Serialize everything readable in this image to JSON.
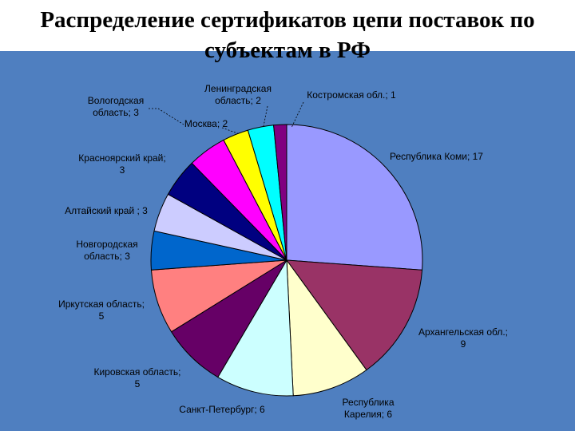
{
  "slide": {
    "title": "Распределение сертификатов цепи поставок по субъектам в РФ"
  },
  "chart_data": {
    "type": "pie",
    "title": "Распределение сертификатов цепи поставок по субъектам в РФ",
    "start": "12 o'clock",
    "direction": "clockwise",
    "slices": [
      {
        "name": "Республика Коми",
        "value": 17,
        "label_lines": [
          "Республика Коми; 17"
        ],
        "color": "#9999ff"
      },
      {
        "name": "Архангельская обл.",
        "value": 9,
        "label_lines": [
          "Архангельская обл.;",
          "9"
        ],
        "color": "#993366"
      },
      {
        "name": "Республика Карелия",
        "value": 6,
        "label_lines": [
          "Республика",
          "Карелия; 6"
        ],
        "color": "#ffffcc"
      },
      {
        "name": "Санкт-Петербург",
        "value": 6,
        "label_lines": [
          "Санкт-Петербург; 6"
        ],
        "color": "#ccffff"
      },
      {
        "name": "Кировская область",
        "value": 5,
        "label_lines": [
          "Кировская область;",
          "5"
        ],
        "color": "#660066"
      },
      {
        "name": "Иркутская область",
        "value": 5,
        "label_lines": [
          "Иркутская область;",
          "5"
        ],
        "color": "#ff8080"
      },
      {
        "name": "Новгородская область",
        "value": 3,
        "label_lines": [
          "Новгородская",
          "область; 3"
        ],
        "color": "#0066cc"
      },
      {
        "name": "Алтайский край",
        "value": 3,
        "label_lines": [
          "Алтайский край ; 3"
        ],
        "color": "#ccccff"
      },
      {
        "name": "Красноярский край",
        "value": 3,
        "label_lines": [
          "Красноярский край;",
          "3"
        ],
        "color": "#000080"
      },
      {
        "name": "Вологодская область",
        "value": 3,
        "label_lines": [
          "Вологодская",
          "область; 3"
        ],
        "color": "#ff00ff"
      },
      {
        "name": "Москва",
        "value": 2,
        "label_lines": [
          "Москва; 2"
        ],
        "color": "#ffff00"
      },
      {
        "name": "Ленинградская область",
        "value": 2,
        "label_lines": [
          "Ленинградская",
          "область; 2"
        ],
        "color": "#00ffff"
      },
      {
        "name": "Костромская обл.",
        "value": 1,
        "label_lines": [
          "Костромская обл.; 1"
        ],
        "color": "#800080"
      }
    ]
  }
}
